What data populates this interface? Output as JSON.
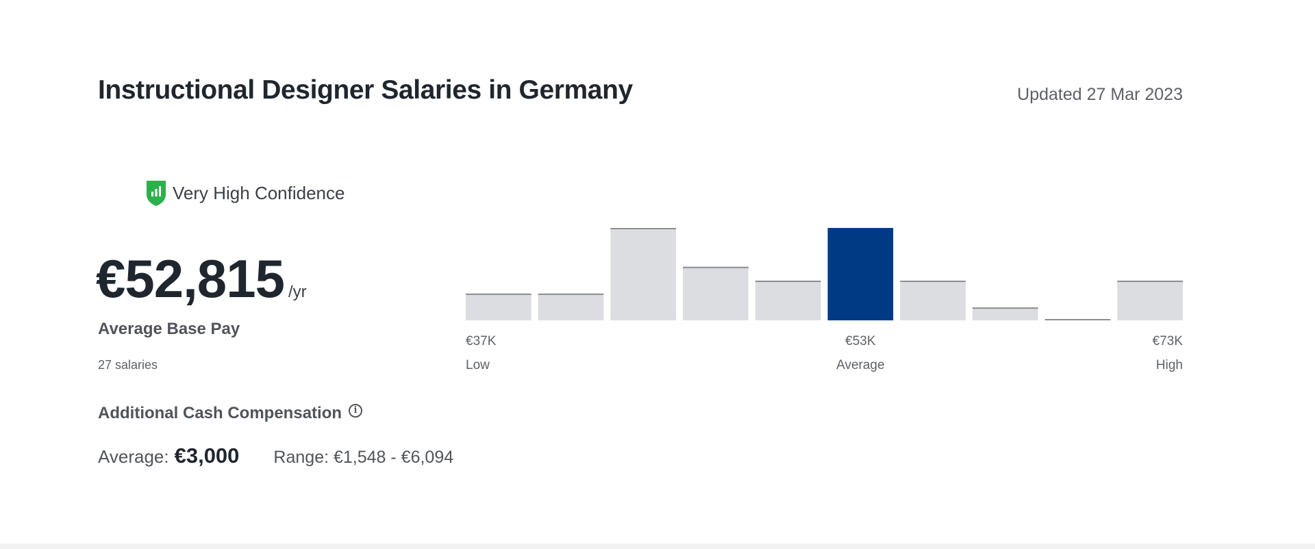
{
  "title": "Instructional Designer Salaries in Germany",
  "updated": "Updated 27 Mar 2023",
  "confidence": {
    "label": "Very High Confidence",
    "icon": "confidence-shield-icon",
    "color": "#2bb14b"
  },
  "pay": {
    "amount": "€52,815",
    "unit": "/yr",
    "label": "Average Base Pay",
    "count": "27 salaries"
  },
  "additional": {
    "label": "Additional Cash Compensation",
    "info_icon": "info-icon",
    "average_label": "Average:",
    "average_value": "€3,000",
    "range": "Range: €1,548 - €6,094"
  },
  "chart_data": {
    "type": "bar",
    "bin_heights": [
      0.29,
      0.29,
      1.0,
      0.58,
      0.43,
      1.0,
      0.43,
      0.14,
      0.0,
      0.43
    ],
    "highlight_index": 5,
    "colors": {
      "bar": "#dcdde0",
      "bar_top": "#8a8d91",
      "highlight": "#003a85"
    },
    "ticks": [
      {
        "value": "€37K",
        "label": "Low"
      },
      {
        "value": "€53K",
        "label": "Average"
      },
      {
        "value": "€73K",
        "label": "High"
      }
    ]
  }
}
